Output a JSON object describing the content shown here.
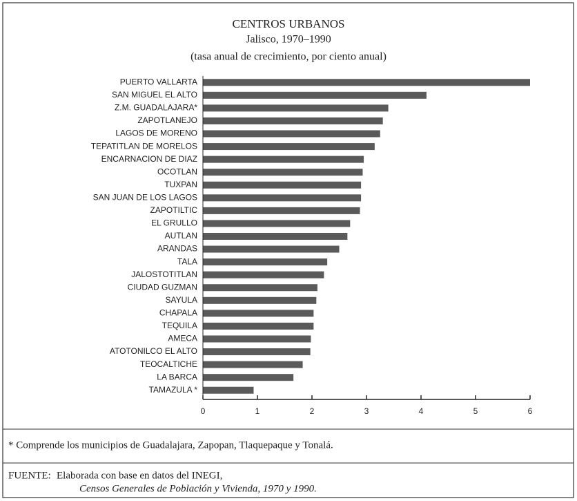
{
  "chart_data": {
    "type": "bar",
    "orientation": "horizontal",
    "title": "CENTROS URBANOS",
    "subtitle": "Jalisco, 1970–1990",
    "note": "(tasa anual de crecimiento, por ciento anual)",
    "categories": [
      "PUERTO VALLARTA",
      "SAN MIGUEL EL ALTO",
      "Z.M. GUADALAJARA*",
      "ZAPOTLANEJO",
      "LAGOS DE MORENO",
      "TEPATITLAN DE MORELOS",
      "ENCARNACION DE DIAZ",
      "OCOTLAN",
      "TUXPAN",
      "SAN JUAN DE LOS LAGOS",
      "ZAPOTILTIC",
      "EL GRULLO",
      "AUTLAN",
      "ARANDAS",
      "TALA",
      "JALOSTOTITLAN",
      "CIUDAD GUZMAN",
      "SAYULA",
      "CHAPALA",
      "TEQUILA",
      "AMECA",
      "ATOTONILCO EL ALTO",
      "TEOCALTICHE",
      "LA BARCA",
      "TAMAZULA *"
    ],
    "values": [
      6.0,
      4.1,
      3.4,
      3.3,
      3.25,
      3.15,
      2.95,
      2.93,
      2.9,
      2.9,
      2.88,
      2.7,
      2.65,
      2.5,
      2.28,
      2.22,
      2.1,
      2.08,
      2.03,
      2.03,
      1.98,
      1.97,
      1.83,
      1.66,
      0.93
    ],
    "color": "#5a5a5a",
    "xlim": [
      0,
      6
    ],
    "xticks": [
      0,
      1,
      2,
      3,
      4,
      5,
      6
    ],
    "grid": false
  },
  "footnote": "* Comprende los municipios de Guadalajara, Zapopan, Tlaquepaque y Tonalá.",
  "source": {
    "label": "FUENTE:",
    "text": "Elaborada con base en datos del INEGI,",
    "italic": "Censos Generales de Población y Vivienda, 1970 y 1990."
  }
}
